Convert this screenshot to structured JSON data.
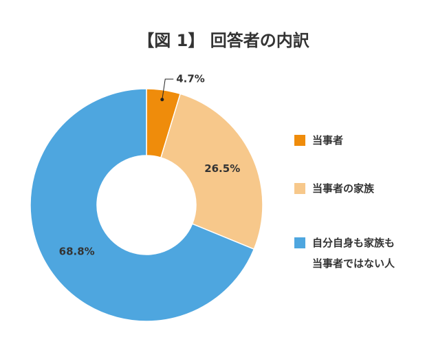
{
  "chart_data": {
    "type": "donut",
    "title": "【図 1】 回答者の内訳",
    "categories": [
      "当事者",
      "当事者の家族",
      "自分自身も家族も\n当事者ではない人"
    ],
    "values": [
      4.7,
      26.5,
      68.8
    ],
    "value_labels": [
      "4.7%",
      "26.5%",
      "68.8%"
    ],
    "colors": [
      "#ef8c0b",
      "#f7c88b",
      "#4ea6df"
    ]
  }
}
